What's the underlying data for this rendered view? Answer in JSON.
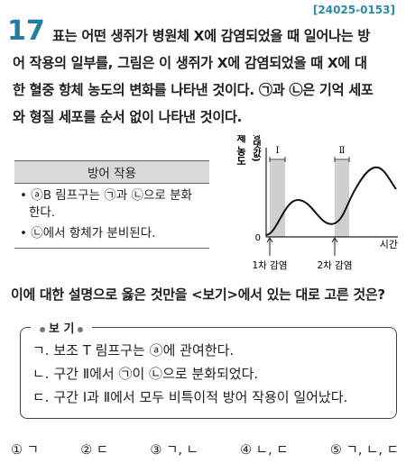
{
  "problem_code": "[24025-0153]",
  "question_number": "17",
  "stem_lines": [
    "표는 어떤 생쥐가 병원체 X에 감염되었을 때 일어나는 방",
    "어 작용의 일부를, 그림은 이 생쥐가 X에 감염되었을 때 X에 대",
    "한 혈중 항체 농도의 변화를 나타낸 것이다. ㉠과 ㉡은 기억 세포",
    "와 형질 세포를 순서 없이 나타낸 것이다."
  ],
  "table": {
    "header": "방어 작용",
    "rows": [
      [
        "• ⓐB 림프구는 ㉠과 ㉡으로 분화",
        "한다."
      ],
      [
        "• ㉡에서 항체가 분비된다."
      ]
    ]
  },
  "graph": {
    "y_label": "항체 농도",
    "y_label_sub": "(상댓값)",
    "x_label": "시간",
    "origin": "0",
    "interval_1": "Ⅰ",
    "interval_2": "Ⅱ",
    "event_1": "1차 감염",
    "event_2": "2차 감염"
  },
  "question": "이에 대한 설명으로 옳은 것만을 <보기>에서 있는 대로 고른 것은?",
  "bogi": {
    "title": "보 기",
    "items": [
      "ㄱ. 보조 T 림프구는 ⓐ에 관여한다.",
      "ㄴ. 구간 Ⅱ에서 ㉠이 ㉡으로 분화되었다.",
      "ㄷ. 구간 Ⅰ과 Ⅱ에서 모두 비특이적 방어 작용이 일어났다."
    ]
  },
  "choices": [
    "① ㄱ",
    "② ㄷ",
    "③ ㄱ, ㄴ",
    "④ ㄴ, ㄷ",
    "⑤ ㄱ, ㄴ, ㄷ"
  ]
}
